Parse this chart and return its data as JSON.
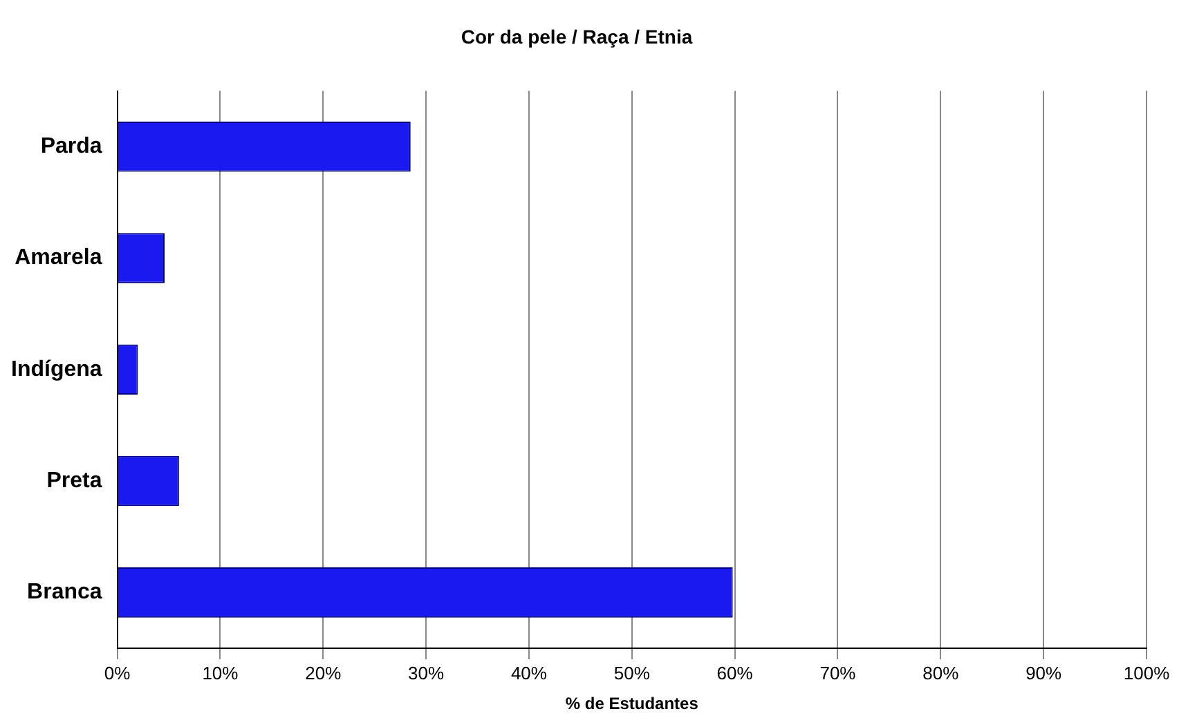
{
  "chart_data": {
    "type": "bar",
    "orientation": "horizontal",
    "title": "Cor da pele / Raça / Etnia",
    "xlabel": "% de Estudantes",
    "categories": [
      "Parda",
      "Amarela",
      "Indígena",
      "Preta",
      "Branca"
    ],
    "values": [
      28.5,
      4.6,
      2,
      6,
      59.8
    ],
    "color": "#1a1af0",
    "xlim": [
      0,
      100
    ],
    "xticks": [
      {
        "value": 0,
        "label": "0%"
      },
      {
        "value": 10,
        "label": "10%"
      },
      {
        "value": 20,
        "label": "20%"
      },
      {
        "value": 30,
        "label": "30%"
      },
      {
        "value": 40,
        "label": "40%"
      },
      {
        "value": 50,
        "label": "50%"
      },
      {
        "value": 60,
        "label": "60%"
      },
      {
        "value": 70,
        "label": "70%"
      },
      {
        "value": 80,
        "label": "80%"
      },
      {
        "value": 90,
        "label": "90%"
      },
      {
        "value": 100,
        "label": "100%"
      }
    ],
    "grid": "x",
    "legend": false
  }
}
